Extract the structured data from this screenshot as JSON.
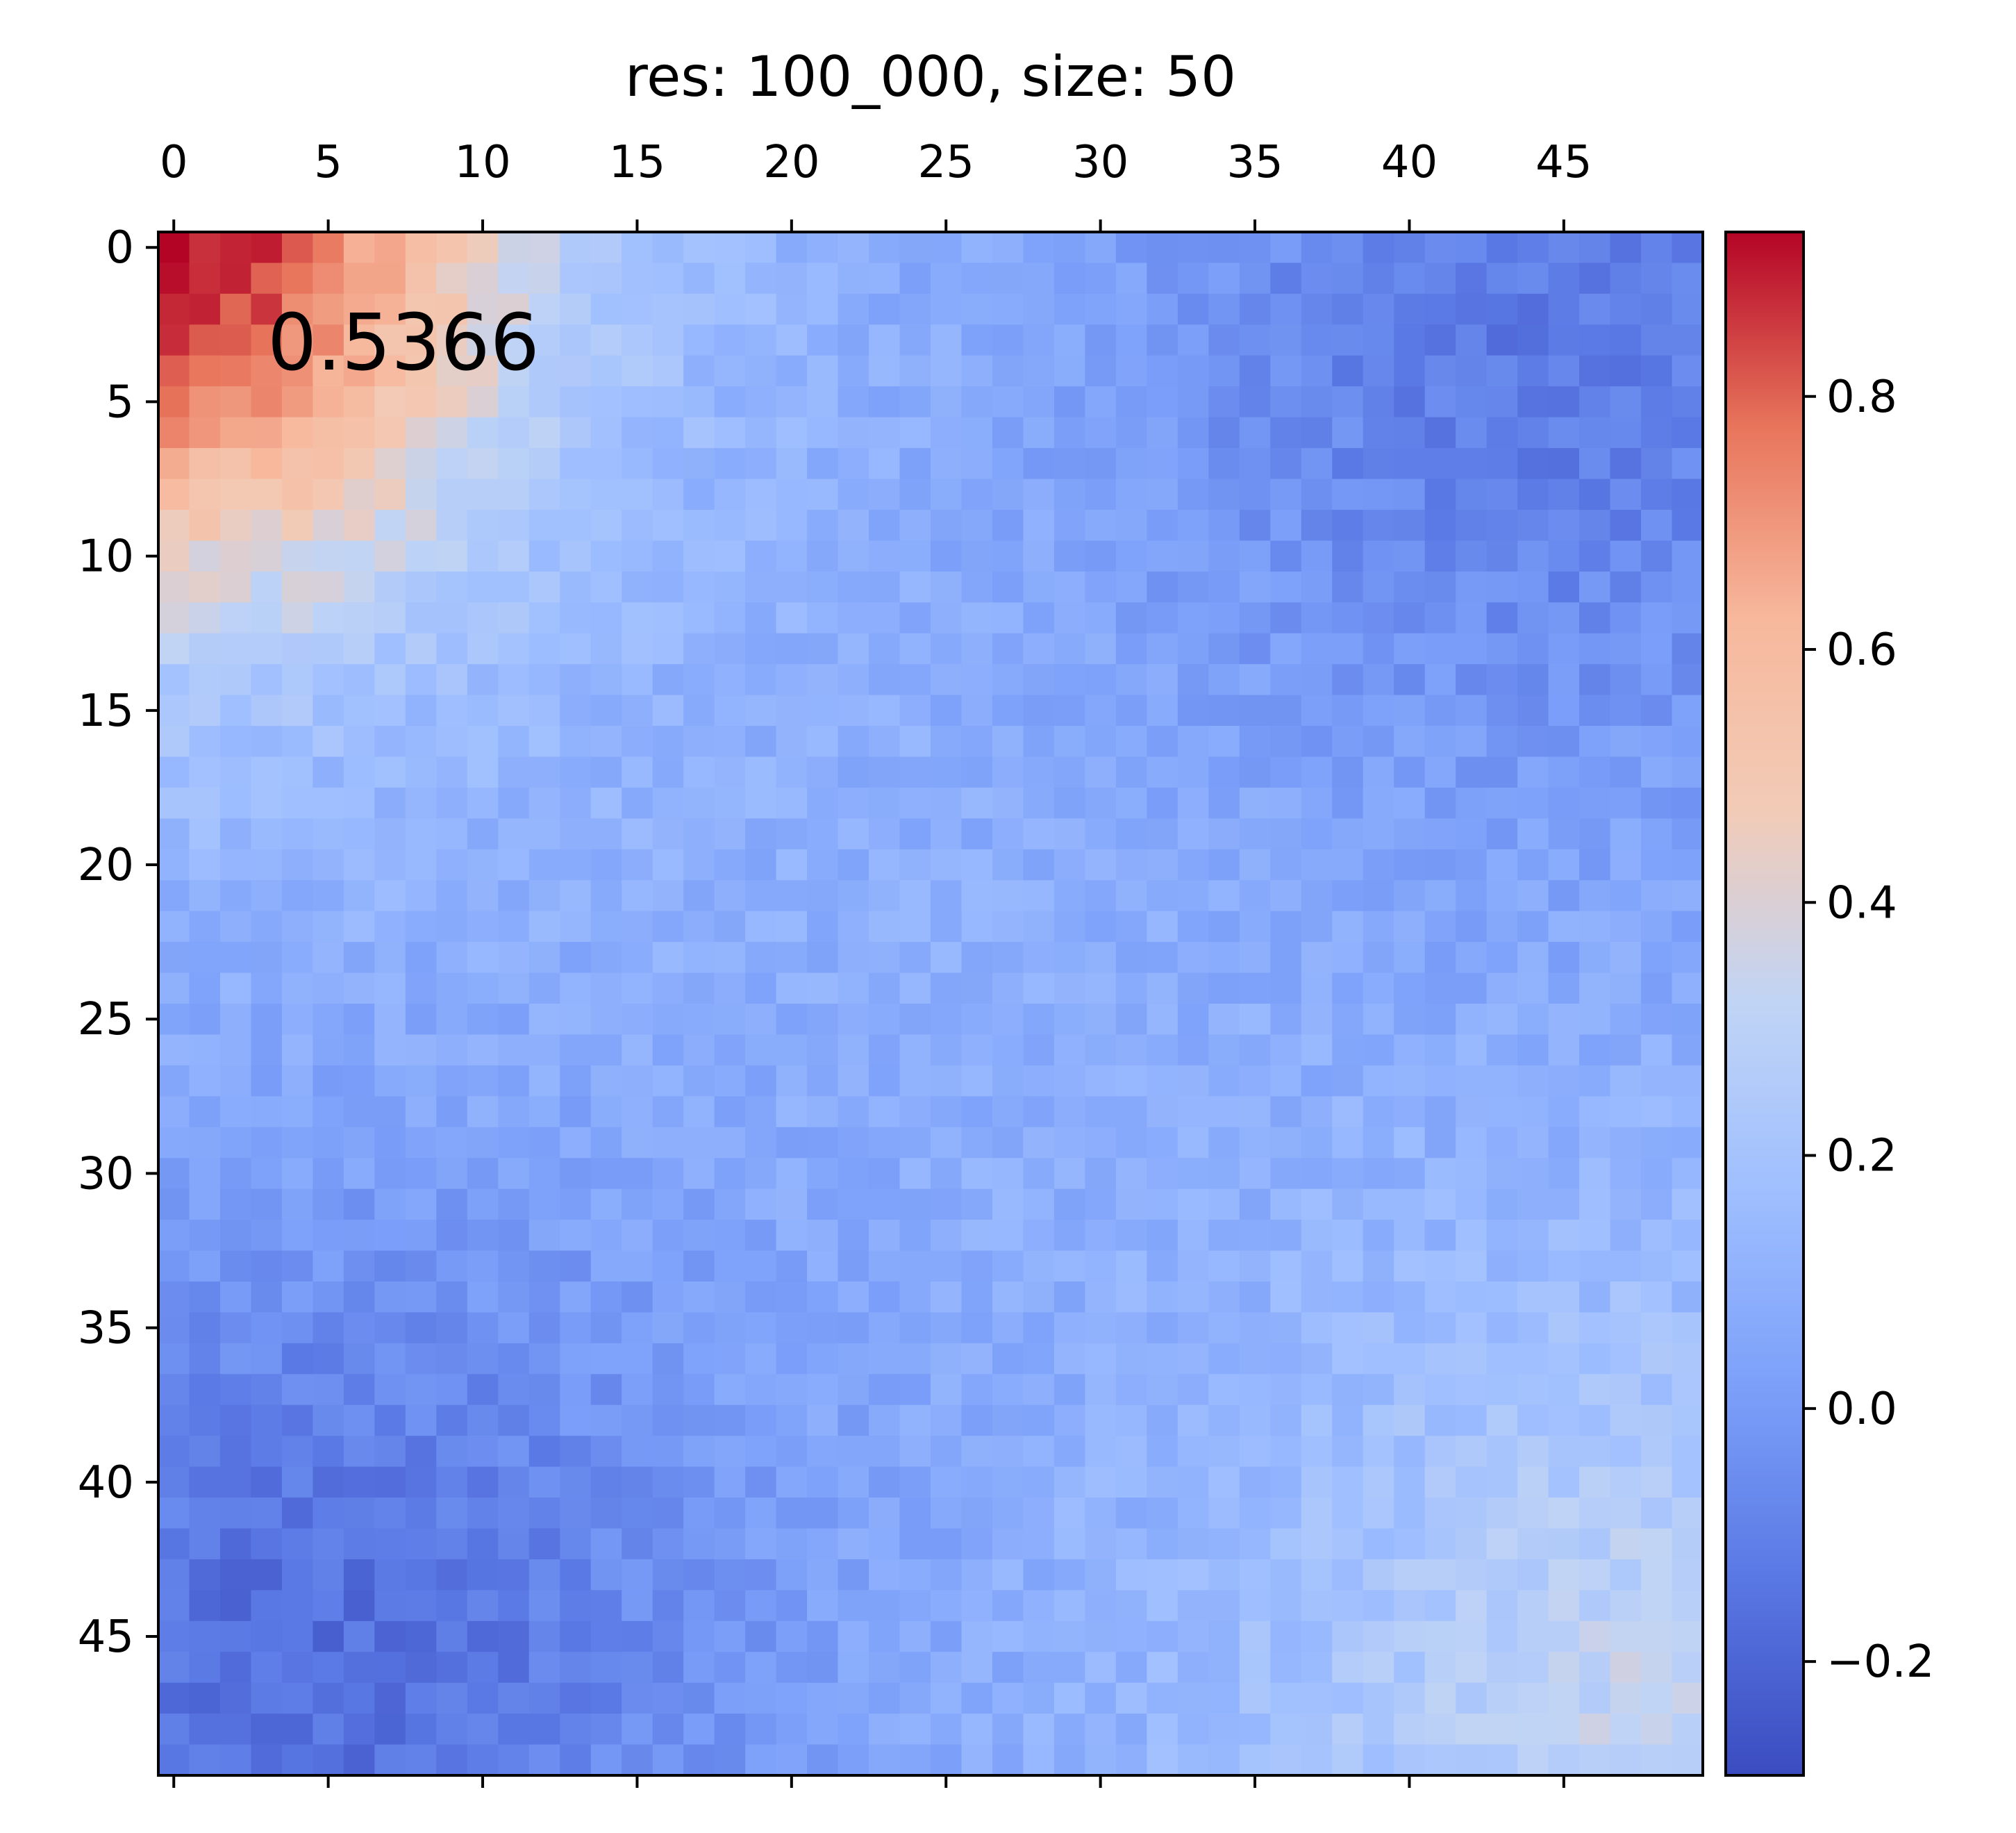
{
  "chart_data": {
    "type": "heatmap",
    "title": "res: 100_000, size: 50",
    "annotation": "0.5366",
    "colormap": "coolwarm",
    "rows": 50,
    "cols": 50,
    "x_ticks": [
      "0",
      "5",
      "10",
      "15",
      "20",
      "25",
      "30",
      "35",
      "40",
      "45"
    ],
    "y_ticks": [
      "0",
      "5",
      "10",
      "15",
      "20",
      "25",
      "30",
      "35",
      "40",
      "45"
    ],
    "x_axis_position": "top",
    "colorbar": {
      "position": "right",
      "range": [
        -0.29,
        0.93
      ],
      "ticks": [
        "−0.2",
        "0.0",
        "0.2",
        "0.4",
        "0.6",
        "0.8"
      ],
      "tick_values": [
        -0.2,
        0.0,
        0.2,
        0.4,
        0.6,
        0.8
      ]
    },
    "approximate_pattern": {
      "description_values": "row-major 50x50 values reconstructed from visual field",
      "max_corner_value": 0.93,
      "top_right_value": -0.2,
      "bottom_left_value": -0.27,
      "bottom_right_value": 0.4
    }
  }
}
